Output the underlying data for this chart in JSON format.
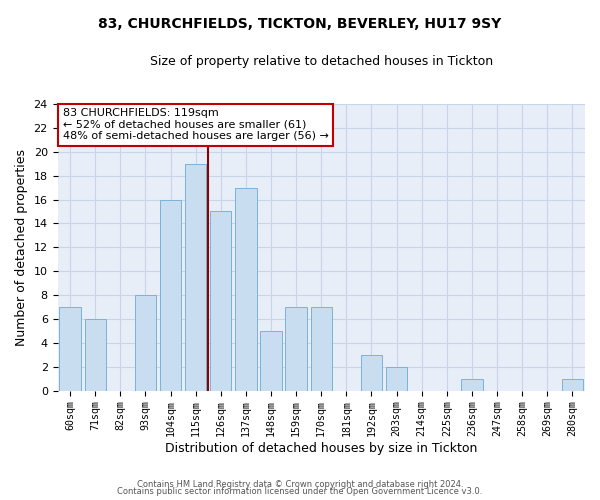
{
  "title": "83, CHURCHFIELDS, TICKTON, BEVERLEY, HU17 9SY",
  "subtitle": "Size of property relative to detached houses in Tickton",
  "xlabel": "Distribution of detached houses by size in Tickton",
  "ylabel": "Number of detached properties",
  "bar_labels": [
    "60sqm",
    "71sqm",
    "82sqm",
    "93sqm",
    "104sqm",
    "115sqm",
    "126sqm",
    "137sqm",
    "148sqm",
    "159sqm",
    "170sqm",
    "181sqm",
    "192sqm",
    "203sqm",
    "214sqm",
    "225sqm",
    "236sqm",
    "247sqm",
    "258sqm",
    "269sqm",
    "280sqm"
  ],
  "bar_values": [
    7,
    6,
    0,
    8,
    16,
    19,
    15,
    17,
    5,
    7,
    7,
    0,
    3,
    2,
    0,
    0,
    1,
    0,
    0,
    0,
    1
  ],
  "bar_color": "#c9ddf0",
  "bar_edge_color": "#7ab3d8",
  "ylim": [
    0,
    24
  ],
  "yticks": [
    0,
    2,
    4,
    6,
    8,
    10,
    12,
    14,
    16,
    18,
    20,
    22,
    24
  ],
  "vline_x_index": 5,
  "vline_color": "#8b0000",
  "annotation_title": "83 CHURCHFIELDS: 119sqm",
  "annotation_line1": "← 52% of detached houses are smaller (61)",
  "annotation_line2": "48% of semi-detached houses are larger (56) →",
  "annotation_box_facecolor": "#ffffff",
  "annotation_box_edgecolor": "#c00000",
  "grid_color": "#c8d4e8",
  "footer1": "Contains HM Land Registry data © Crown copyright and database right 2024.",
  "footer2": "Contains public sector information licensed under the Open Government Licence v3.0.",
  "fig_facecolor": "#ffffff",
  "axes_facecolor": "#e8eef8"
}
